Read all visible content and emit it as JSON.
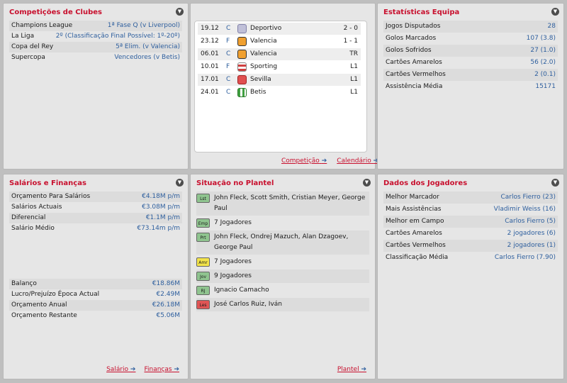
{
  "club_comps": {
    "title": "Competições de Clubes",
    "rows": [
      {
        "label": "Champions League",
        "value": "1ª Fase Q (v Liverpool)"
      },
      {
        "label": "La Liga",
        "value": "2º (Classificação Final Possível: 1º-20º)"
      },
      {
        "label": "Copa del Rey",
        "value": "5ª Elim. (v Valencia)"
      },
      {
        "label": "Supercopa",
        "value": "Vencedores (v Betis)"
      }
    ]
  },
  "fixtures": {
    "rows": [
      {
        "date": "19.12",
        "comp": "C",
        "team": "Deportivo",
        "result": "2 - 0",
        "crest": "#c0c0d8"
      },
      {
        "date": "23.12",
        "comp": "F",
        "team": "Valencia",
        "result": "1 - 1",
        "crest": "#f0a030"
      },
      {
        "date": "06.01",
        "comp": "C",
        "team": "Valencia",
        "result": "TR",
        "crest": "#f0a030"
      },
      {
        "date": "10.01",
        "comp": "F",
        "team": "Sporting",
        "result": "L1",
        "crest": "#d04040"
      },
      {
        "date": "17.01",
        "comp": "C",
        "team": "Sevilla",
        "result": "L1",
        "crest": "#e05050"
      },
      {
        "date": "24.01",
        "comp": "C",
        "team": "Betis",
        "result": "L1",
        "crest": "#40a040"
      }
    ],
    "link_competition": "Competição",
    "link_calendar": "Calendário"
  },
  "team_stats": {
    "title": "Estatísticas Equipa",
    "rows": [
      {
        "label": "Jogos Disputados",
        "value": "28"
      },
      {
        "label": "Golos Marcados",
        "value": "107 (3.8)"
      },
      {
        "label": "Golos Sofridos",
        "value": "27 (1.0)"
      },
      {
        "label": "Cartões Amarelos",
        "value": "56 (2.0)"
      },
      {
        "label": "Cartões Vermelhos",
        "value": "2 (0.1)"
      },
      {
        "label": "Assistência Média",
        "value": "15171"
      }
    ]
  },
  "finances": {
    "title": "Salários e Finanças",
    "rows_top": [
      {
        "label": "Orçamento Para Salários",
        "value": "€4.18M p/m"
      },
      {
        "label": "Salários Actuais",
        "value": "€3.08M p/m"
      },
      {
        "label": "Diferencial",
        "value": "€1.1M p/m"
      },
      {
        "label": "Salário Médio",
        "value": "€73.14m p/m"
      }
    ],
    "rows_bottom": [
      {
        "label": "Balanço",
        "value": "€18.86M"
      },
      {
        "label": "Lucro/Prejuízo Época Actual",
        "value": "€2.49M"
      },
      {
        "label": "Orçamento Anual",
        "value": "€26.18M"
      },
      {
        "label": "Orçamento Restante",
        "value": "€5.06M"
      }
    ],
    "link_salary": "Salário",
    "link_finances": "Finanças"
  },
  "squad": {
    "title": "Situação no Plantel",
    "rows": [
      {
        "badge": "Lst",
        "badge_color": "#8fc48f",
        "text": "John Fleck, Scott Smith, Cristian Meyer, George Paul"
      },
      {
        "badge": "Emp",
        "badge_color": "#8fc48f",
        "text": "7 Jogadores"
      },
      {
        "badge": "Prt",
        "badge_color": "#8fc48f",
        "text": "John Fleck, Ondrej Mazuch, Alan Dzagoev, George Paul"
      },
      {
        "badge": "Amr",
        "badge_color": "#f2e34a",
        "text": "7 Jogadores"
      },
      {
        "badge": "Jov",
        "badge_color": "#8fc48f",
        "text": "9 Jogadores"
      },
      {
        "badge": "RJ",
        "badge_color": "#8fc48f",
        "text": "Ignacio Camacho"
      },
      {
        "badge": "Les",
        "badge_color": "#e05555",
        "text": "José Carlos Ruiz, Iván"
      }
    ],
    "link_squad": "Plantel"
  },
  "players": {
    "title": "Dados dos Jogadores",
    "rows": [
      {
        "label": "Melhor Marcador",
        "value": "Carlos Fierro (23)"
      },
      {
        "label": "Mais Assistências",
        "value": "Vladimir Weiss (16)"
      },
      {
        "label": "Melhor em Campo",
        "value": "Carlos Fierro (5)"
      },
      {
        "label": "Cartões Amarelos",
        "value": "2 jogadores (6)"
      },
      {
        "label": "Cartões Vermelhos",
        "value": "2 jogadores (1)"
      },
      {
        "label": "Classificação Média",
        "value": "Carlos Fierro (7.90)"
      }
    ]
  },
  "icons": {
    "collapse": "chevron-down-icon",
    "arrow": "arrow-right-icon"
  }
}
